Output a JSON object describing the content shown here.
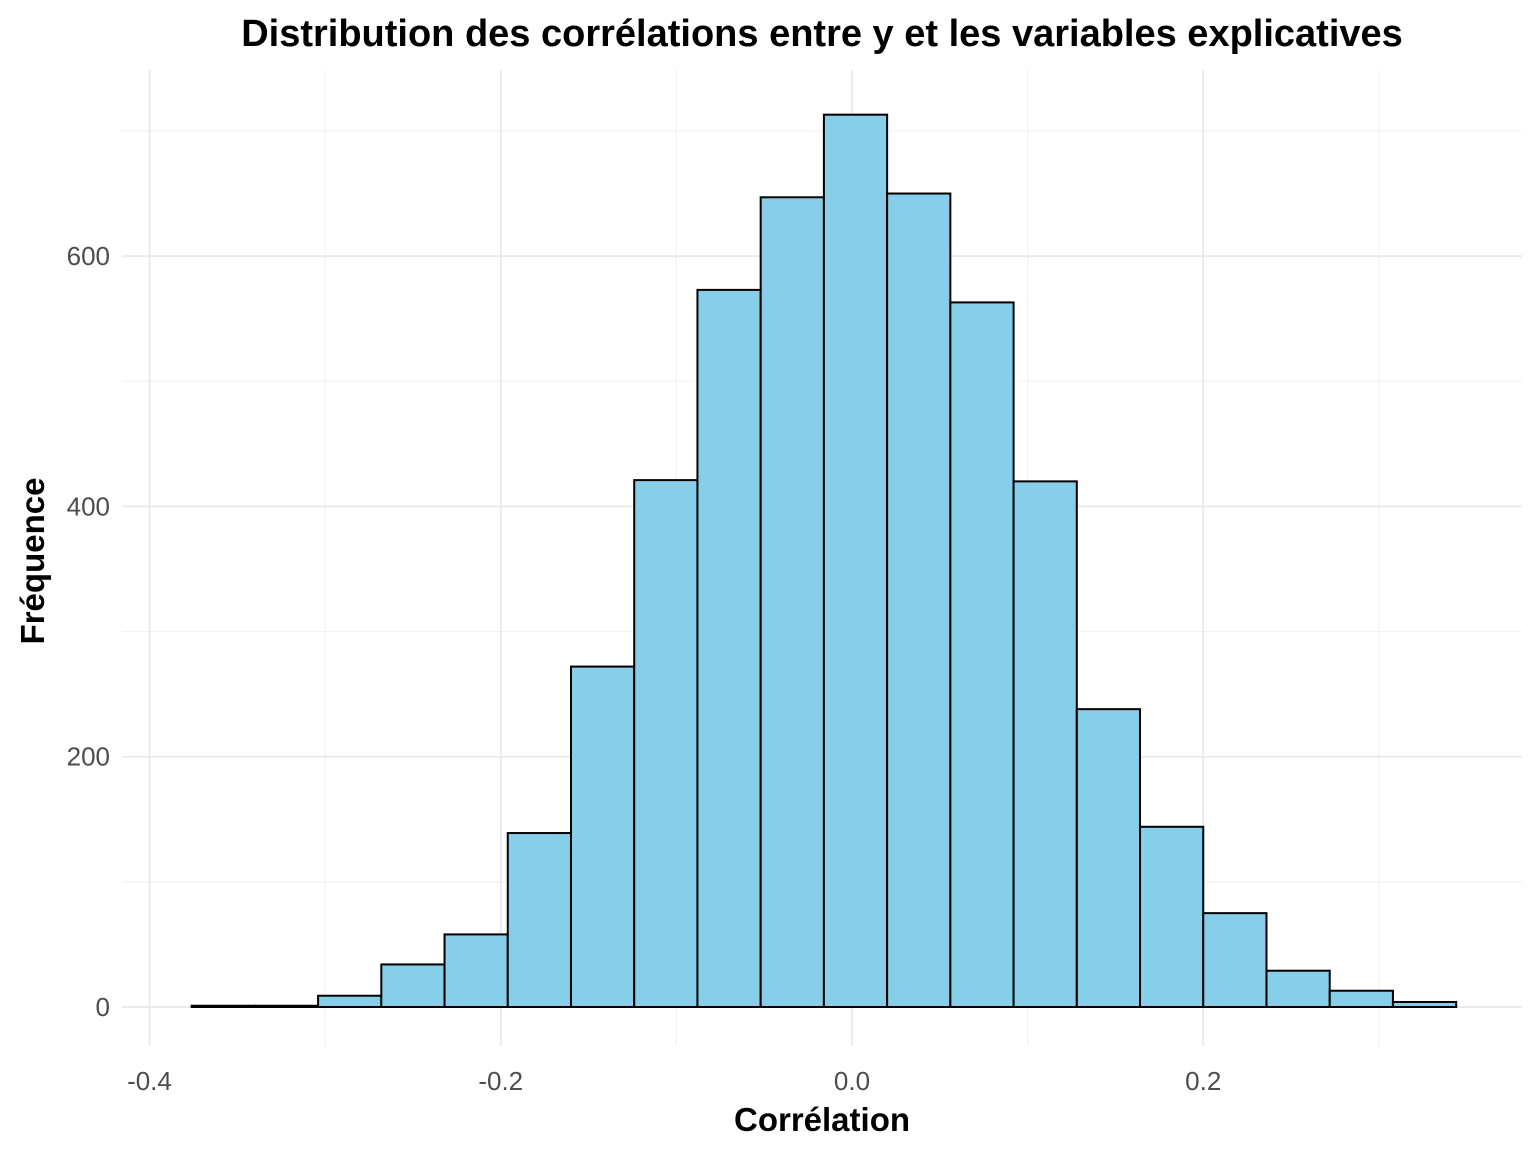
{
  "chart_data": {
    "type": "bar",
    "title": "Distribution des corrélations entre y et les variables explicatives",
    "xlabel": "Corrélation",
    "ylabel": "Fréquence",
    "bin_edges": [
      -0.376,
      -0.34,
      -0.304,
      -0.268,
      -0.232,
      -0.196,
      -0.16,
      -0.124,
      -0.088,
      -0.052,
      -0.016,
      0.02,
      0.056,
      0.092,
      0.128,
      0.164,
      0.2,
      0.236,
      0.272,
      0.308,
      0.344
    ],
    "values": [
      1,
      1,
      9,
      34,
      58,
      139,
      272,
      421,
      573,
      647,
      713,
      650,
      563,
      420,
      238,
      144,
      75,
      29,
      13,
      4
    ],
    "xlim": [
      -0.4,
      0.3
    ],
    "ylim": [
      0,
      700
    ],
    "x_ticks": [
      "-0.4",
      "-0.2",
      "0.0",
      "0.2"
    ],
    "x_tick_values": [
      -0.4,
      -0.2,
      0.0,
      0.2
    ],
    "y_ticks": [
      "0",
      "200",
      "400",
      "600"
    ],
    "y_tick_values": [
      0,
      200,
      400,
      600
    ],
    "bar_color": "#87CEEB",
    "bar_outline_color": "#000000",
    "grid": true,
    "legend": "none"
  }
}
